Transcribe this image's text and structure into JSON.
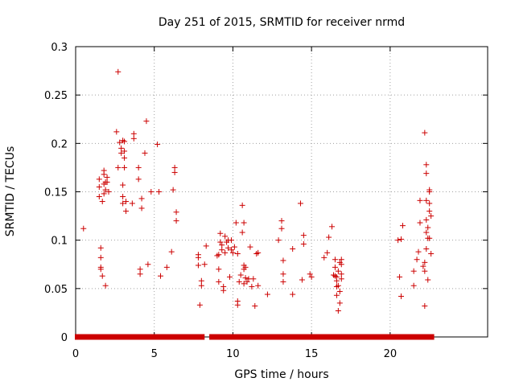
{
  "chart_data": {
    "type": "scatter",
    "title": "Day 251 of 2015, SRMTID for receiver nrmd",
    "xlabel": "GPS time / hours",
    "ylabel": "SRMTID / TECUs",
    "xlim": [
      0,
      26.2
    ],
    "ylim": [
      0,
      0.3
    ],
    "xticks": [
      0,
      5,
      10,
      15,
      20
    ],
    "yticks": [
      0,
      0.05,
      0.1,
      0.15,
      0.2,
      0.25,
      0.3
    ],
    "xtick_labels": [
      "0",
      "5",
      "10",
      "15",
      "20"
    ],
    "ytick_labels": [
      "0",
      "0.05",
      "0.1",
      "0.15",
      "0.2",
      "0.25",
      "0.3"
    ],
    "grid": true,
    "marker": "+",
    "color": "#cc0000",
    "series": [
      {
        "name": "SRMTID",
        "points": [
          [
            0.5,
            0.112
          ],
          [
            1.5,
            0.163
          ],
          [
            1.5,
            0.155
          ],
          [
            1.5,
            0.145
          ],
          [
            1.6,
            0.092
          ],
          [
            1.6,
            0.082
          ],
          [
            1.6,
            0.072
          ],
          [
            1.6,
            0.07
          ],
          [
            1.7,
            0.063
          ],
          [
            1.7,
            0.14
          ],
          [
            1.8,
            0.172
          ],
          [
            1.8,
            0.168
          ],
          [
            1.8,
            0.158
          ],
          [
            1.8,
            0.148
          ],
          [
            1.9,
            0.152
          ],
          [
            1.9,
            0.16
          ],
          [
            1.9,
            0.053
          ],
          [
            2.0,
            0.165
          ],
          [
            2.0,
            0.16
          ],
          [
            2.1,
            0.15
          ],
          [
            2.6,
            0.212
          ],
          [
            2.7,
            0.274
          ],
          [
            2.7,
            0.175
          ],
          [
            2.8,
            0.201
          ],
          [
            2.9,
            0.195
          ],
          [
            2.9,
            0.19
          ],
          [
            3.0,
            0.203
          ],
          [
            3.0,
            0.157
          ],
          [
            3.0,
            0.145
          ],
          [
            3.0,
            0.138
          ],
          [
            3.1,
            0.192
          ],
          [
            3.1,
            0.185
          ],
          [
            3.1,
            0.175
          ],
          [
            3.1,
            0.202
          ],
          [
            3.2,
            0.14
          ],
          [
            3.2,
            0.13
          ],
          [
            3.6,
            0.138
          ],
          [
            3.7,
            0.21
          ],
          [
            3.7,
            0.205
          ],
          [
            4.0,
            0.175
          ],
          [
            4.0,
            0.163
          ],
          [
            4.1,
            0.07
          ],
          [
            4.1,
            0.065
          ],
          [
            4.2,
            0.143
          ],
          [
            4.2,
            0.133
          ],
          [
            4.4,
            0.19
          ],
          [
            4.5,
            0.223
          ],
          [
            4.6,
            0.075
          ],
          [
            4.8,
            0.15
          ],
          [
            5.2,
            0.199
          ],
          [
            5.3,
            0.15
          ],
          [
            5.4,
            0.063
          ],
          [
            5.8,
            0.072
          ],
          [
            6.1,
            0.088
          ],
          [
            6.2,
            0.152
          ],
          [
            6.3,
            0.175
          ],
          [
            6.3,
            0.17
          ],
          [
            6.4,
            0.129
          ],
          [
            6.4,
            0.12
          ],
          [
            7.8,
            0.085
          ],
          [
            7.8,
            0.082
          ],
          [
            7.8,
            0.074
          ],
          [
            7.9,
            0.033
          ],
          [
            8.0,
            0.058
          ],
          [
            8.0,
            0.053
          ],
          [
            8.2,
            0.075
          ],
          [
            8.3,
            0.094
          ],
          [
            9.0,
            0.084
          ],
          [
            9.1,
            0.085
          ],
          [
            9.1,
            0.07
          ],
          [
            9.1,
            0.057
          ],
          [
            9.2,
            0.107
          ],
          [
            9.2,
            0.098
          ],
          [
            9.3,
            0.095
          ],
          [
            9.3,
            0.09
          ],
          [
            9.4,
            0.052
          ],
          [
            9.4,
            0.048
          ],
          [
            9.5,
            0.104
          ],
          [
            9.5,
            0.087
          ],
          [
            9.6,
            0.098
          ],
          [
            9.7,
            0.092
          ],
          [
            9.7,
            0.1
          ],
          [
            9.8,
            0.062
          ],
          [
            9.9,
            0.1
          ],
          [
            9.9,
            0.09
          ],
          [
            10.0,
            0.087
          ],
          [
            10.1,
            0.093
          ],
          [
            10.2,
            0.118
          ],
          [
            10.3,
            0.086
          ],
          [
            10.3,
            0.037
          ],
          [
            10.3,
            0.033
          ],
          [
            10.4,
            0.057
          ],
          [
            10.5,
            0.064
          ],
          [
            10.6,
            0.108
          ],
          [
            10.6,
            0.136
          ],
          [
            10.7,
            0.118
          ],
          [
            10.7,
            0.074
          ],
          [
            10.7,
            0.07
          ],
          [
            10.7,
            0.055
          ],
          [
            10.8,
            0.072
          ],
          [
            10.8,
            0.061
          ],
          [
            10.9,
            0.057
          ],
          [
            11.0,
            0.06
          ],
          [
            11.1,
            0.093
          ],
          [
            11.2,
            0.052
          ],
          [
            11.3,
            0.06
          ],
          [
            11.4,
            0.032
          ],
          [
            11.5,
            0.086
          ],
          [
            11.6,
            0.087
          ],
          [
            11.6,
            0.053
          ],
          [
            12.2,
            0.044
          ],
          [
            12.9,
            0.1
          ],
          [
            13.1,
            0.12
          ],
          [
            13.1,
            0.112
          ],
          [
            13.2,
            0.079
          ],
          [
            13.2,
            0.065
          ],
          [
            13.2,
            0.057
          ],
          [
            13.8,
            0.091
          ],
          [
            13.8,
            0.044
          ],
          [
            14.3,
            0.138
          ],
          [
            14.4,
            0.059
          ],
          [
            14.5,
            0.105
          ],
          [
            14.5,
            0.096
          ],
          [
            14.9,
            0.065
          ],
          [
            15.0,
            0.062
          ],
          [
            15.8,
            0.082
          ],
          [
            16.0,
            0.087
          ],
          [
            16.1,
            0.103
          ],
          [
            16.3,
            0.114
          ],
          [
            16.4,
            0.064
          ],
          [
            16.5,
            0.08
          ],
          [
            16.5,
            0.072
          ],
          [
            16.5,
            0.063
          ],
          [
            16.6,
            0.062
          ],
          [
            16.6,
            0.058
          ],
          [
            16.6,
            0.052
          ],
          [
            16.6,
            0.043
          ],
          [
            16.7,
            0.068
          ],
          [
            16.7,
            0.053
          ],
          [
            16.7,
            0.027
          ],
          [
            16.8,
            0.077
          ],
          [
            16.8,
            0.047
          ],
          [
            16.8,
            0.035
          ],
          [
            16.9,
            0.08
          ],
          [
            16.9,
            0.075
          ],
          [
            16.9,
            0.065
          ],
          [
            16.9,
            0.06
          ],
          [
            20.5,
            0.1
          ],
          [
            20.6,
            0.062
          ],
          [
            20.7,
            0.101
          ],
          [
            20.7,
            0.042
          ],
          [
            20.8,
            0.115
          ],
          [
            21.5,
            0.053
          ],
          [
            21.5,
            0.068
          ],
          [
            21.7,
            0.08
          ],
          [
            21.8,
            0.088
          ],
          [
            21.9,
            0.141
          ],
          [
            21.9,
            0.118
          ],
          [
            22.1,
            0.073
          ],
          [
            22.2,
            0.077
          ],
          [
            22.2,
            0.211
          ],
          [
            22.2,
            0.068
          ],
          [
            22.2,
            0.032
          ],
          [
            22.3,
            0.178
          ],
          [
            22.3,
            0.169
          ],
          [
            22.3,
            0.141
          ],
          [
            22.3,
            0.121
          ],
          [
            22.3,
            0.108
          ],
          [
            22.3,
            0.091
          ],
          [
            22.4,
            0.113
          ],
          [
            22.4,
            0.102
          ],
          [
            22.4,
            0.059
          ],
          [
            22.5,
            0.152
          ],
          [
            22.5,
            0.15
          ],
          [
            22.5,
            0.138
          ],
          [
            22.5,
            0.13
          ],
          [
            22.5,
            0.102
          ],
          [
            22.6,
            0.125
          ],
          [
            22.6,
            0.086
          ]
        ],
        "zero_segments": [
          [
            0.0,
            8.15
          ],
          [
            8.55,
            22.75
          ]
        ]
      }
    ]
  }
}
